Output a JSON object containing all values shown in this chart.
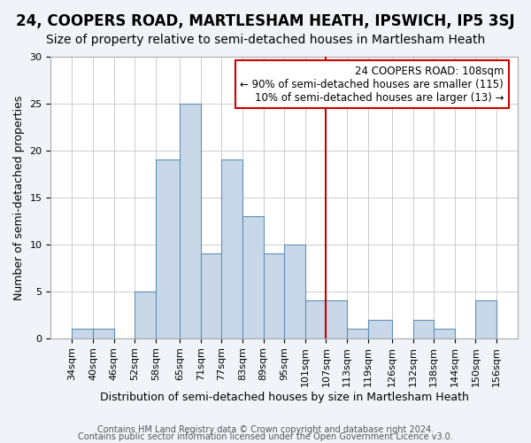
{
  "title": "24, COOPERS ROAD, MARTLESHAM HEATH, IPSWICH, IP5 3SJ",
  "subtitle": "Size of property relative to semi-detached houses in Martlesham Heath",
  "xlabel": "Distribution of semi-detached houses by size in Martlesham Heath",
  "ylabel": "Number of semi-detached properties",
  "footer_line1": "Contains HM Land Registry data © Crown copyright and database right 2024.",
  "footer_line2": "Contains public sector information licensed under the Open Government Licence v3.0.",
  "bin_edges": [
    34,
    40,
    46,
    52,
    58,
    65,
    71,
    77,
    83,
    89,
    95,
    101,
    107,
    113,
    119,
    126,
    132,
    138,
    144,
    150,
    156
  ],
  "bar_heights": [
    1,
    1,
    0,
    5,
    19,
    25,
    9,
    19,
    13,
    9,
    10,
    4,
    4,
    1,
    2,
    0,
    2,
    1,
    0,
    4
  ],
  "bar_color": "#c8d8e8",
  "bar_edgecolor": "#6090b8",
  "vline_x": 107,
  "vline_color": "#cc0000",
  "annotation_title": "24 COOPERS ROAD: 108sqm",
  "annotation_line1": "← 90% of semi-detached houses are smaller (115)",
  "annotation_line2": "10% of semi-detached houses are larger (13) →",
  "annotation_box_edgecolor": "#cc0000",
  "annotation_box_facecolor": "#ffffff",
  "ylim": [
    0,
    30
  ],
  "yticks": [
    0,
    5,
    10,
    15,
    20,
    25,
    30
  ],
  "background_color": "#f0f4f8",
  "plot_background_color": "#ffffff",
  "title_fontsize": 12,
  "subtitle_fontsize": 10,
  "xlabel_fontsize": 9,
  "ylabel_fontsize": 9,
  "tick_fontsize": 8,
  "annotation_fontsize": 8.5,
  "footer_fontsize": 7
}
